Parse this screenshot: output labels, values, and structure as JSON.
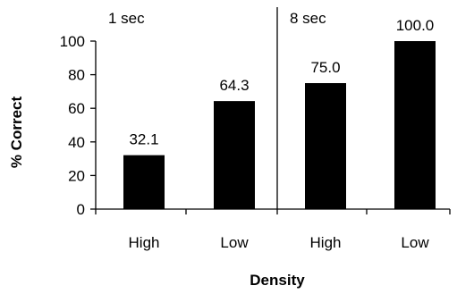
{
  "chart_data": {
    "type": "bar",
    "xlabel": "Density",
    "ylabel": "% Correct",
    "ylim": [
      0,
      100
    ],
    "yticks": [
      0,
      20,
      40,
      60,
      80,
      100
    ],
    "categories": [
      "High",
      "Low",
      "High",
      "Low"
    ],
    "values": [
      32.1,
      64.3,
      75.0,
      100.0
    ],
    "value_labels": [
      "32.1",
      "64.3",
      "75.0",
      "100.0"
    ],
    "groups": [
      {
        "label": "1 sec",
        "categories": [
          0,
          1
        ]
      },
      {
        "label": "8 sec",
        "categories": [
          2,
          3
        ]
      }
    ],
    "bar_color": "#000000",
    "grid": false,
    "legend": "none"
  }
}
